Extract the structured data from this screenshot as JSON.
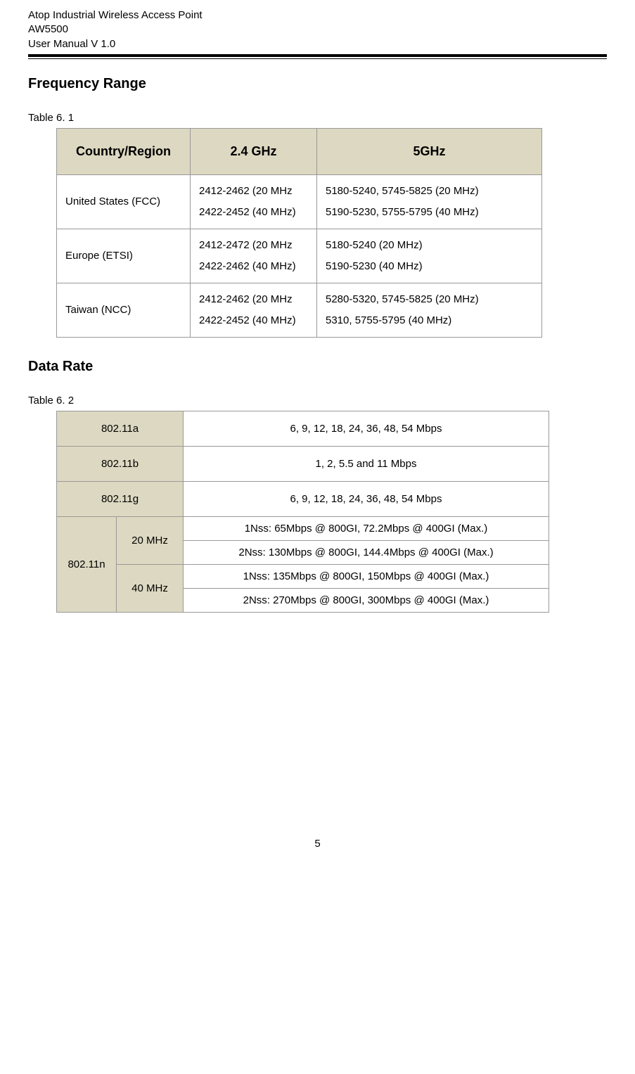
{
  "header": {
    "line1": "Atop Industrial Wireless Access Point",
    "line2": "AW5500",
    "line3": "User Manual V 1.0"
  },
  "section1": {
    "heading": "Frequency Range",
    "caption": "Table 6. 1",
    "headers": {
      "region": "Country/Region",
      "ghz24": "2.4 GHz",
      "ghz5": "5GHz"
    },
    "rows": [
      {
        "region_col": "United States (FCC)",
        "ghz24_l1": "2412-2462 (20 MHz",
        "ghz24_l2": "2422-2452 (40 MHz)",
        "ghz5_l1": "5180-5240, 5745-5825 (20 MHz)",
        "ghz5_l2": "5190-5230, 5755-5795 (40 MHz)"
      },
      {
        "region_col": "Europe (ETSI)",
        "ghz24_l1": "2412-2472 (20 MHz",
        "ghz24_l2": "2422-2462 (40 MHz)",
        "ghz5_l1": "5180-5240 (20 MHz)",
        "ghz5_l2": "5190-5230 (40 MHz)"
      },
      {
        "region_col": "Taiwan (NCC)",
        "ghz24_l1": "2412-2462 (20 MHz",
        "ghz24_l2": "2422-2452 (40 MHz)",
        "ghz5_l1": "5280-5320, 5745-5825 (20 MHz)",
        "ghz5_l2": "5310, 5755-5795 (40 MHz)"
      }
    ]
  },
  "section2": {
    "heading": "Data Rate",
    "caption": "Table 6. 2",
    "rows": {
      "a": {
        "label": "802.11a",
        "value": "6, 9, 12, 18, 24, 36, 48, 54 Mbps"
      },
      "b": {
        "label": "802.11b",
        "value": "1, 2, 5.5 and 11 Mbps"
      },
      "g": {
        "label": "802.11g",
        "value": "6, 9, 12, 18, 24, 36, 48, 54 Mbps"
      },
      "n": {
        "label": "802.11n",
        "bw20": "20 MHz",
        "bw40": "40 MHz",
        "r1": "1Nss: 65Mbps @ 800GI, 72.2Mbps @ 400GI (Max.)",
        "r2": "2Nss: 130Mbps @ 800GI, 144.4Mbps @ 400GI (Max.)",
        "r3": "1Nss: 135Mbps @ 800GI, 150Mbps @ 400GI (Max.)",
        "r4": "2Nss: 270Mbps @ 800GI, 300Mbps @ 400GI (Max.)"
      }
    }
  },
  "pageNumber": "5",
  "colors": {
    "beige": "#ddd8c1",
    "border": "#999999",
    "text": "#000000",
    "background": "#ffffff"
  }
}
